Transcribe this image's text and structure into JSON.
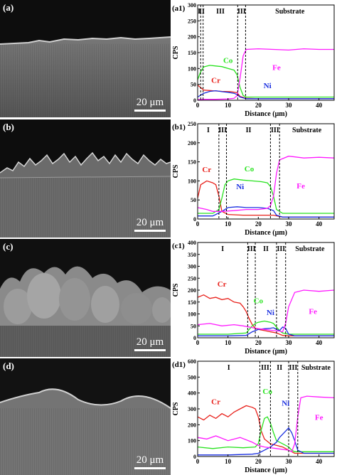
{
  "sem_images": [
    {
      "label": "(a)",
      "scale": "20 μm"
    },
    {
      "label": "(b)",
      "scale": "20 μm"
    },
    {
      "label": "(c)",
      "scale": "20 μm"
    },
    {
      "label": "(d)",
      "scale": "20 μm"
    }
  ],
  "colors": {
    "Cr": "#e8211b",
    "Co": "#27e21e",
    "Ni": "#1a2fe0",
    "Fe": "#ff1aff",
    "axis": "#000000"
  },
  "chart_data": [
    {
      "type": "line",
      "panel": "(a1)",
      "xlabel": "Distance (μm)",
      "ylabel": "CPS",
      "xlim": [
        0,
        45
      ],
      "ylim": [
        0,
        300
      ],
      "xticks": [
        0,
        10,
        20,
        30,
        40
      ],
      "yticks": [
        0,
        50,
        100,
        150,
        200,
        250,
        300
      ],
      "zones": [
        {
          "label": "I"
        },
        {
          "label": "II"
        },
        {
          "label": "III"
        },
        {
          "label": "III"
        },
        {
          "label": "Substrate"
        }
      ],
      "boundaries": [
        1,
        1.8,
        13.2,
        15.8
      ],
      "series": [
        {
          "name": "Cr",
          "x": [
            0,
            2,
            5,
            8,
            11,
            13,
            14,
            16,
            20,
            30,
            40,
            45
          ],
          "values": [
            48,
            32,
            30,
            28,
            27,
            24,
            12,
            6,
            5,
            5,
            5,
            5
          ]
        },
        {
          "name": "Co",
          "x": [
            0,
            1,
            2,
            4,
            6,
            8,
            10,
            12,
            13,
            14,
            15,
            16,
            20,
            30,
            40,
            45
          ],
          "values": [
            65,
            90,
            105,
            110,
            108,
            106,
            100,
            95,
            80,
            40,
            15,
            10,
            10,
            10,
            10,
            10
          ]
        },
        {
          "name": "Ni",
          "x": [
            0,
            2,
            4,
            6,
            8,
            10,
            12,
            13,
            14,
            16,
            20,
            30,
            40,
            45
          ],
          "values": [
            10,
            22,
            28,
            30,
            27,
            25,
            22,
            18,
            10,
            5,
            5,
            5,
            5,
            5
          ]
        },
        {
          "name": "Fe",
          "x": [
            0,
            2,
            6,
            10,
            12,
            13,
            14,
            15,
            16,
            20,
            25,
            30,
            35,
            40,
            45
          ],
          "values": [
            2,
            3,
            3,
            4,
            6,
            15,
            70,
            140,
            160,
            162,
            160,
            158,
            162,
            160,
            160
          ]
        }
      ],
      "annotations": [
        {
          "text": "Co",
          "x": 10,
          "y": 118,
          "color": "Co"
        },
        {
          "text": "Cr",
          "x": 6,
          "y": 55,
          "color": "Cr"
        },
        {
          "text": "Fe",
          "x": 26,
          "y": 95,
          "color": "Fe"
        },
        {
          "text": "Ni",
          "x": 23,
          "y": 38,
          "color": "Ni"
        }
      ]
    },
    {
      "type": "line",
      "panel": "(b1)",
      "xlabel": "Distance (μm)",
      "ylabel": "CPS",
      "xlim": [
        0,
        45
      ],
      "ylim": [
        0,
        250
      ],
      "xticks": [
        0,
        10,
        20,
        30,
        40
      ],
      "yticks": [
        0,
        50,
        100,
        150,
        200,
        250
      ],
      "zones": [
        {
          "label": "I"
        },
        {
          "label": "III"
        },
        {
          "label": "II"
        },
        {
          "label": "III"
        },
        {
          "label": "Substrate"
        }
      ],
      "boundaries": [
        7,
        9.5,
        24,
        27
      ],
      "series": [
        {
          "name": "Cr",
          "x": [
            0,
            1,
            3,
            5,
            6,
            7,
            8,
            10,
            15,
            20,
            25,
            28,
            30,
            40,
            45
          ],
          "values": [
            55,
            90,
            100,
            95,
            90,
            60,
            20,
            12,
            10,
            10,
            10,
            5,
            5,
            5,
            5
          ]
        },
        {
          "name": "Co",
          "x": [
            0,
            5,
            7,
            8,
            9,
            10,
            12,
            15,
            18,
            21,
            23,
            24,
            25,
            26,
            28,
            35,
            45
          ],
          "values": [
            15,
            15,
            25,
            55,
            90,
            100,
            105,
            102,
            100,
            98,
            95,
            85,
            60,
            25,
            15,
            15,
            15
          ]
        },
        {
          "name": "Ni",
          "x": [
            0,
            5,
            8,
            10,
            13,
            16,
            20,
            23,
            25,
            26,
            28,
            35,
            45
          ],
          "values": [
            8,
            8,
            20,
            30,
            32,
            30,
            30,
            28,
            22,
            10,
            5,
            5,
            5
          ]
        },
        {
          "name": "Fe",
          "x": [
            0,
            3,
            5,
            8,
            12,
            16,
            20,
            23,
            24,
            25,
            26,
            27,
            30,
            35,
            40,
            45
          ],
          "values": [
            30,
            25,
            20,
            20,
            22,
            25,
            25,
            28,
            35,
            60,
            120,
            155,
            165,
            160,
            162,
            160
          ]
        }
      ],
      "annotations": [
        {
          "text": "Cr",
          "x": 3,
          "y": 123,
          "color": "Cr"
        },
        {
          "text": "Co",
          "x": 17,
          "y": 125,
          "color": "Co"
        },
        {
          "text": "Ni",
          "x": 14,
          "y": 78,
          "color": "Ni"
        },
        {
          "text": "Fe",
          "x": 34,
          "y": 80,
          "color": "Fe"
        }
      ]
    },
    {
      "type": "line",
      "panel": "(c1)",
      "xlabel": "Distance (μm)",
      "ylabel": "CPS",
      "xlim": [
        0,
        45
      ],
      "ylim": [
        0,
        400
      ],
      "xticks": [
        0,
        10,
        20,
        30,
        40
      ],
      "yticks": [
        0,
        50,
        100,
        150,
        200,
        250,
        300,
        350,
        400
      ],
      "zones": [
        {
          "label": "I"
        },
        {
          "label": "III"
        },
        {
          "label": "II"
        },
        {
          "label": "III"
        },
        {
          "label": "Substrate"
        }
      ],
      "boundaries": [
        16.5,
        19,
        26,
        29
      ],
      "series": [
        {
          "name": "Cr",
          "x": [
            0,
            2,
            4,
            6,
            8,
            10,
            12,
            14,
            15,
            16,
            17,
            18,
            19,
            20,
            22,
            26,
            28,
            30,
            40,
            45
          ],
          "values": [
            170,
            180,
            165,
            170,
            160,
            165,
            150,
            145,
            130,
            110,
            80,
            55,
            40,
            35,
            30,
            20,
            10,
            8,
            8,
            8
          ]
        },
        {
          "name": "Co",
          "x": [
            0,
            10,
            16,
            17,
            18,
            19,
            20,
            22,
            24,
            25,
            26,
            27,
            28,
            30,
            40,
            45
          ],
          "values": [
            15,
            15,
            20,
            35,
            50,
            60,
            65,
            70,
            65,
            60,
            45,
            30,
            20,
            15,
            15,
            15
          ]
        },
        {
          "name": "Ni",
          "x": [
            0,
            10,
            16,
            18,
            20,
            22,
            24,
            25,
            26,
            27,
            28,
            29,
            30,
            32,
            40,
            45
          ],
          "values": [
            8,
            8,
            10,
            25,
            35,
            38,
            40,
            42,
            35,
            30,
            45,
            40,
            15,
            8,
            8,
            8
          ]
        },
        {
          "name": "Fe",
          "x": [
            0,
            4,
            8,
            12,
            15,
            17,
            19,
            22,
            25,
            27,
            28,
            29,
            30,
            32,
            35,
            40,
            45
          ],
          "values": [
            55,
            60,
            50,
            55,
            50,
            45,
            40,
            35,
            30,
            28,
            25,
            60,
            130,
            190,
            200,
            195,
            200
          ]
        }
      ],
      "annotations": [
        {
          "text": "Cr",
          "x": 8,
          "y": 215,
          "color": "Cr"
        },
        {
          "text": "Co",
          "x": 20,
          "y": 145,
          "color": "Co"
        },
        {
          "text": "Ni",
          "x": 24,
          "y": 95,
          "color": "Ni"
        },
        {
          "text": "Fe",
          "x": 38,
          "y": 100,
          "color": "Fe"
        }
      ]
    },
    {
      "type": "line",
      "panel": "(d1)",
      "xlabel": "Distance (μm)",
      "ylabel": "CPS",
      "xlim": [
        0,
        45
      ],
      "ylim": [
        0,
        600
      ],
      "xticks": [
        0,
        10,
        20,
        30,
        40
      ],
      "yticks": [
        0,
        100,
        200,
        300,
        400,
        500,
        600
      ],
      "zones": [
        {
          "label": "I"
        },
        {
          "label": "III"
        },
        {
          "label": "II"
        },
        {
          "label": "III"
        },
        {
          "label": "Substrate"
        }
      ],
      "boundaries": [
        20.5,
        24,
        30,
        33
      ],
      "series": [
        {
          "name": "Cr",
          "x": [
            0,
            2,
            4,
            6,
            8,
            10,
            12,
            14,
            16,
            18,
            19,
            20,
            21,
            22,
            24,
            28,
            30,
            32,
            40,
            45
          ],
          "values": [
            250,
            230,
            260,
            240,
            270,
            250,
            280,
            300,
            320,
            310,
            300,
            250,
            160,
            110,
            80,
            60,
            40,
            20,
            20,
            20
          ]
        },
        {
          "name": "Co",
          "x": [
            0,
            5,
            10,
            15,
            19,
            20,
            21,
            22,
            23,
            24,
            25,
            26,
            28,
            30,
            31,
            32,
            34,
            40,
            45
          ],
          "values": [
            60,
            50,
            60,
            55,
            60,
            80,
            170,
            240,
            250,
            210,
            150,
            100,
            80,
            60,
            40,
            30,
            30,
            30,
            30
          ]
        },
        {
          "name": "Ni",
          "x": [
            0,
            10,
            18,
            20,
            22,
            24,
            26,
            27,
            28,
            29,
            30,
            31,
            32,
            33,
            35,
            40,
            45
          ],
          "values": [
            10,
            10,
            15,
            20,
            40,
            60,
            90,
            120,
            140,
            160,
            180,
            150,
            100,
            40,
            20,
            20,
            20
          ]
        },
        {
          "name": "Fe",
          "x": [
            0,
            3,
            6,
            10,
            14,
            18,
            20,
            22,
            26,
            30,
            31,
            32,
            33,
            34,
            36,
            40,
            45
          ],
          "values": [
            120,
            110,
            130,
            100,
            120,
            90,
            70,
            60,
            50,
            40,
            30,
            80,
            250,
            370,
            380,
            375,
            370
          ]
        }
      ],
      "annotations": [
        {
          "text": "Cr",
          "x": 6,
          "y": 330,
          "color": "Cr"
        },
        {
          "text": "Co",
          "x": 23,
          "y": 395,
          "color": "Co"
        },
        {
          "text": "Ni",
          "x": 29,
          "y": 320,
          "color": "Ni"
        },
        {
          "text": "Fe",
          "x": 40,
          "y": 230,
          "color": "Fe"
        }
      ]
    }
  ]
}
